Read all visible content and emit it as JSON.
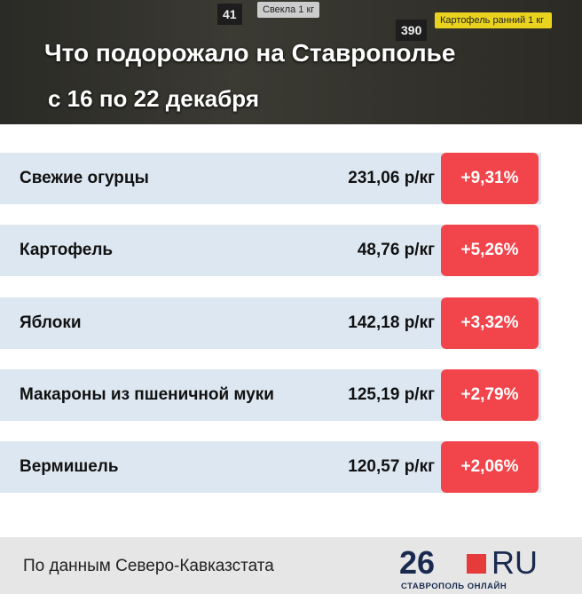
{
  "header": {
    "title": "Что подорожало на Ставрополье",
    "subtitle": "с 16 по 22 декабря",
    "photo_tags": [
      {
        "number": "390",
        "label": "Картофель ранний 1 кг"
      },
      {
        "number": "41",
        "label": "Свекла 1 кг"
      }
    ]
  },
  "table": {
    "rows": [
      {
        "name": "Свежие огурцы",
        "price": "231,06 р/кг",
        "change": "+9,31%"
      },
      {
        "name": "Картофель",
        "price": "48,76 р/кг",
        "change": "+5,26%"
      },
      {
        "name": "Яблоки",
        "price": "142,18 р/кг",
        "change": "+3,32%"
      },
      {
        "name": "Макароны из пшеничной муки",
        "price": "125,19 р/кг",
        "change": "+2,79%"
      },
      {
        "name": "Вермишель",
        "price": "120,57 р/кг",
        "change": "+2,06%"
      }
    ]
  },
  "footer": {
    "source": "По данным Северо-Кавказстата",
    "logo_number": "26",
    "logo_domain": "RU",
    "logo_caption": "СТАВРОПОЛЬ ОНЛАЙН"
  }
}
